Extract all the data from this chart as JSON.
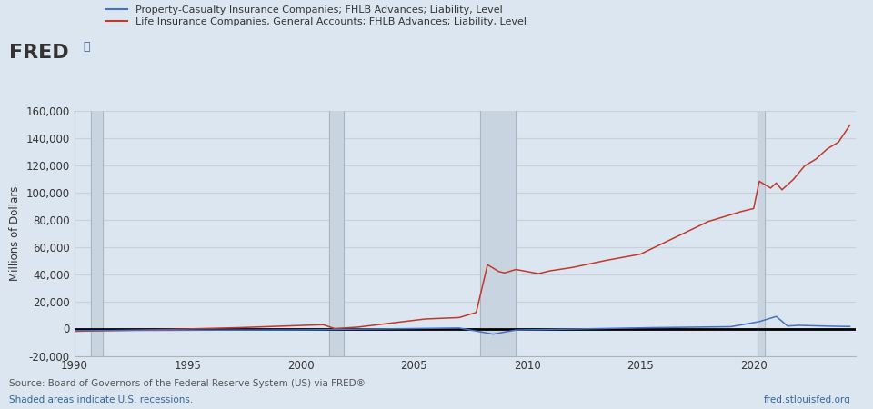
{
  "ylabel": "Millions of Dollars",
  "xlim": [
    1990,
    2024.5
  ],
  "ylim": [
    -20000,
    160000
  ],
  "yticks": [
    -20000,
    0,
    20000,
    40000,
    60000,
    80000,
    100000,
    120000,
    140000,
    160000
  ],
  "xticks": [
    1990,
    1995,
    2000,
    2005,
    2010,
    2015,
    2020
  ],
  "background_color": "#dce6f0",
  "plot_bg_color": "#dce6f0",
  "grid_color": "#c8d0d8",
  "recession_shades": [
    [
      1990.75,
      1991.25
    ],
    [
      2001.25,
      2001.92
    ],
    [
      2007.92,
      2009.5
    ],
    [
      2020.17,
      2020.5
    ]
  ],
  "recession_color": "#c8d4e0",
  "vline_color": "#aab4be",
  "legend_blue_label": "Property-Casualty Insurance Companies; FHLB Advances; Liability, Level",
  "legend_red_label": "Life Insurance Companies, General Accounts; FHLB Advances; Liability, Level",
  "source_text": "Source: Board of Governors of the Federal Reserve System (US) via FRED®",
  "shaded_text": "Shaded areas indicate U.S. recessions.",
  "url_text": "fred.stlouisfed.org",
  "blue_color": "#4472c4",
  "red_color": "#c0392b",
  "zero_line_color": "#000000"
}
